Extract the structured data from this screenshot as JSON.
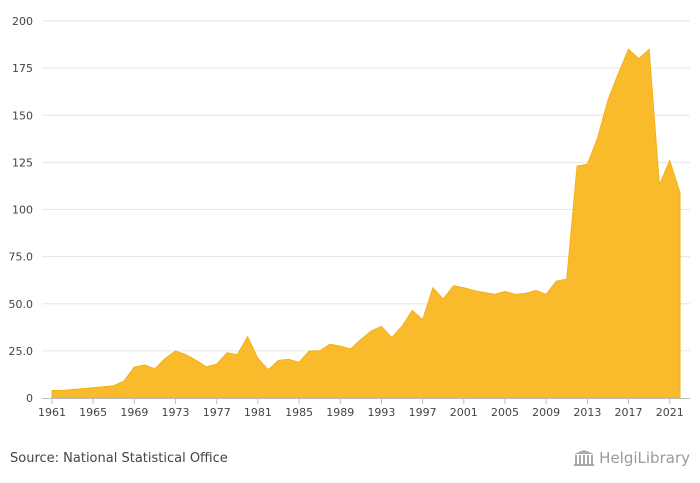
{
  "chart_data": {
    "type": "area",
    "title": "",
    "xlabel": "",
    "ylabel": "",
    "color": "#f9bb2b",
    "grid": true,
    "legend": "none",
    "ylim": [
      0,
      200
    ],
    "xlim": [
      1961,
      2022
    ],
    "yticks": [
      0,
      25,
      50,
      75,
      100,
      125,
      150,
      175,
      200
    ],
    "ytick_labels": [
      "0",
      "25.0",
      "50.0",
      "75.0",
      "100",
      "125",
      "150",
      "175",
      "200"
    ],
    "xticks": [
      1961,
      1965,
      1969,
      1973,
      1977,
      1981,
      1985,
      1989,
      1993,
      1997,
      2001,
      2005,
      2009,
      2013,
      2017,
      2021
    ],
    "x": [
      1961,
      1962,
      1963,
      1964,
      1965,
      1966,
      1967,
      1968,
      1969,
      1970,
      1971,
      1972,
      1973,
      1974,
      1975,
      1976,
      1977,
      1978,
      1979,
      1980,
      1981,
      1982,
      1983,
      1984,
      1985,
      1986,
      1987,
      1988,
      1989,
      1990,
      1991,
      1992,
      1993,
      1994,
      1995,
      1996,
      1997,
      1998,
      1999,
      2000,
      2001,
      2002,
      2003,
      2004,
      2005,
      2006,
      2007,
      2008,
      2009,
      2010,
      2011,
      2012,
      2013,
      2014,
      2015,
      2016,
      2017,
      2018,
      2019,
      2020,
      2021,
      2022
    ],
    "values": [
      4,
      4,
      4.5,
      5,
      5.5,
      6,
      6.5,
      9,
      16.5,
      17.5,
      15.5,
      21,
      25,
      23,
      20,
      16.5,
      18,
      24,
      23,
      32.5,
      21,
      15,
      20,
      20.5,
      19,
      25,
      25,
      28.5,
      27.5,
      26,
      31,
      35.5,
      38,
      32,
      38,
      46.5,
      41.5,
      58.5,
      52.5,
      59.5,
      58.5,
      57,
      56,
      55,
      56.5,
      55,
      55.5,
      57,
      55,
      62,
      63,
      123,
      124,
      138,
      158,
      172,
      185,
      180,
      185,
      113,
      126,
      109
    ]
  },
  "source": "Source: National Statistical Office",
  "brand": {
    "name": "HelgiLibrary",
    "icon": "library-columns-icon"
  }
}
